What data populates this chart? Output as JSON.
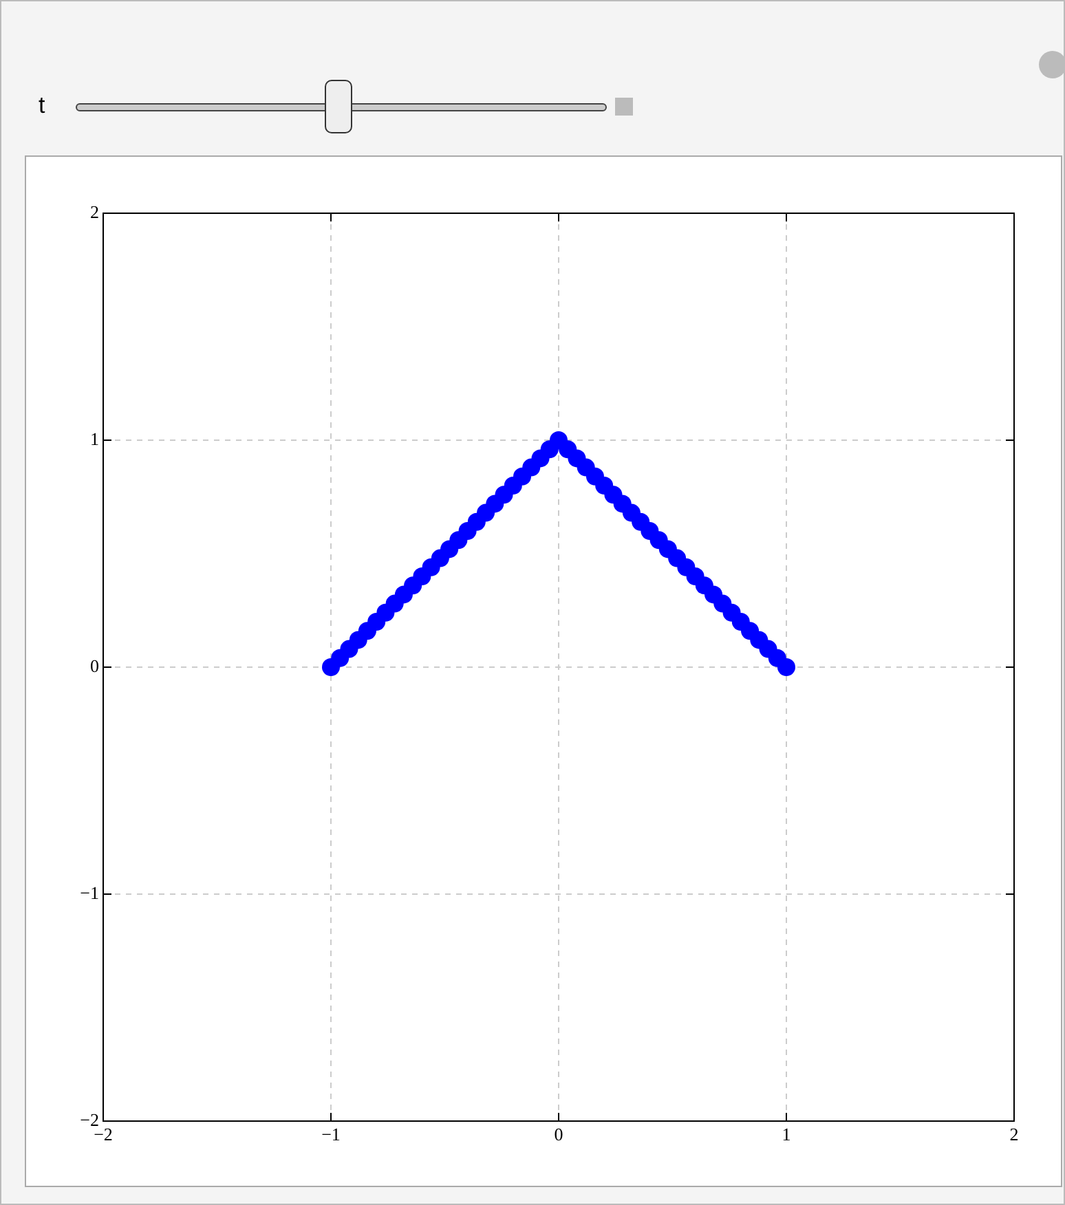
{
  "chart_data": {
    "type": "scatter",
    "annotations": [
      "t"
    ],
    "x": [
      -1,
      -0.96,
      -0.92,
      -0.88,
      -0.84,
      -0.8,
      -0.76,
      -0.72,
      -0.68,
      -0.64,
      -0.6,
      -0.56,
      -0.52,
      -0.48,
      -0.44,
      -0.4,
      -0.36,
      -0.32,
      -0.28,
      -0.24,
      -0.2,
      -0.16,
      -0.12,
      -0.08,
      -0.04,
      0,
      0.04,
      0.08,
      0.12,
      0.16,
      0.2,
      0.24,
      0.28,
      0.32,
      0.36,
      0.4,
      0.44,
      0.48,
      0.52,
      0.56,
      0.6,
      0.64,
      0.68,
      0.72,
      0.76,
      0.8,
      0.84,
      0.88,
      0.92,
      0.96,
      1
    ],
    "series": [
      {
        "color": "#0000ff",
        "values": [
          0,
          0.04,
          0.08,
          0.12,
          0.16,
          0.2,
          0.24,
          0.28,
          0.32,
          0.36,
          0.4,
          0.44,
          0.48,
          0.52,
          0.56,
          0.6,
          0.64,
          0.68,
          0.72,
          0.76,
          0.8,
          0.84,
          0.88,
          0.92,
          0.96,
          1,
          0.96,
          0.92,
          0.88,
          0.84,
          0.8,
          0.76,
          0.72,
          0.68,
          0.64,
          0.6,
          0.56,
          0.52,
          0.48,
          0.44,
          0.4,
          0.36,
          0.32,
          0.28,
          0.24,
          0.2,
          0.16,
          0.12,
          0.08,
          0.04,
          0
        ]
      }
    ],
    "xlim": [
      -2,
      2
    ],
    "ylim": [
      -2,
      2
    ],
    "xticks": [
      {
        "value": -2,
        "label": "−2"
      },
      {
        "value": -1,
        "label": "−1"
      },
      0,
      1,
      2
    ],
    "yticks": [
      {
        "value": -2,
        "label": "−2"
      },
      {
        "value": -1,
        "label": "−1"
      },
      0,
      1,
      2
    ],
    "grid": true,
    "legend": false,
    "marker": "circle"
  }
}
